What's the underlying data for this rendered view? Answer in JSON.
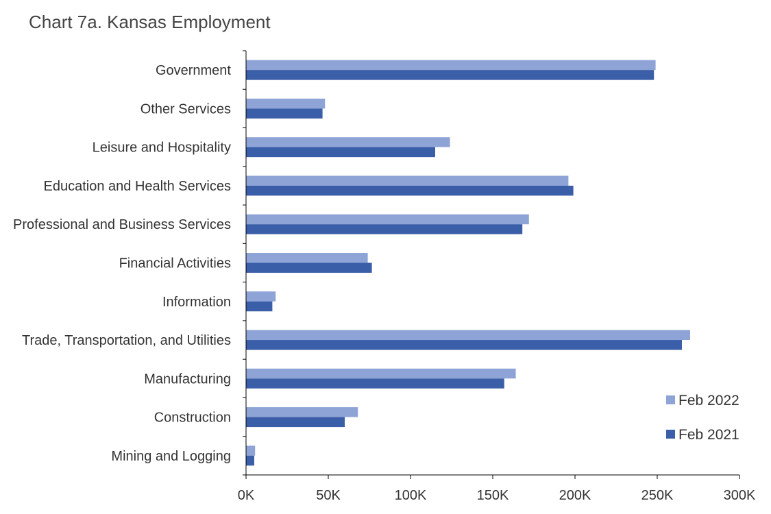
{
  "chart_data": {
    "type": "bar",
    "orientation": "horizontal",
    "title": "Chart 7a. Kansas Employment",
    "xlabel": "",
    "ylabel": "",
    "categories": [
      "Government",
      "Other Services",
      "Leisure and Hospitality",
      "Education and Health Services",
      "Professional and Business Services",
      "Financial Activities",
      "Information",
      "Trade, Transportation, and Utilities",
      "Manufacturing",
      "Construction",
      "Mining and Logging"
    ],
    "series": [
      {
        "name": "Feb 2022",
        "color": "#8fa4d6",
        "values": [
          249000,
          48000,
          124000,
          196000,
          172000,
          74000,
          18000,
          270000,
          164000,
          68000,
          5500
        ]
      },
      {
        "name": "Feb 2021",
        "color": "#3a5ea8",
        "values": [
          248000,
          46500,
          115000,
          199000,
          168000,
          76500,
          16000,
          265000,
          157000,
          60000,
          5000
        ]
      }
    ],
    "xlim": [
      0,
      300000
    ],
    "xticks": [
      {
        "value": 0,
        "label": "0K"
      },
      {
        "value": 50000,
        "label": "50K"
      },
      {
        "value": 100000,
        "label": "100K"
      },
      {
        "value": 150000,
        "label": "150K"
      },
      {
        "value": 200000,
        "label": "200K"
      },
      {
        "value": 250000,
        "label": "250K"
      },
      {
        "value": 300000,
        "label": "300K"
      }
    ],
    "grid": false,
    "legend_position": "bottom-right"
  }
}
